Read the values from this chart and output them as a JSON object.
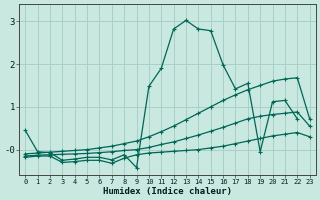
{
  "xlabel": "Humidex (Indice chaleur)",
  "xlim": [
    -0.5,
    23.5
  ],
  "ylim": [
    -0.6,
    3.4
  ],
  "bg_color": "#c8e8e0",
  "grid_color": "#a8d0c8",
  "line_color": "#006655",
  "lines": [
    {
      "x": [
        0,
        1,
        2,
        3,
        4,
        5,
        6,
        7,
        8,
        9,
        10,
        11,
        12,
        13,
        14,
        15,
        16,
        17,
        18,
        19,
        20,
        21,
        22
      ],
      "y": [
        0.45,
        -0.05,
        -0.07,
        -0.25,
        -0.22,
        -0.18,
        -0.18,
        -0.24,
        -0.12,
        -0.42,
        1.48,
        1.9,
        2.82,
        3.02,
        2.82,
        2.78,
        1.98,
        1.42,
        1.55,
        -0.05,
        1.12,
        1.15,
        0.72
      ]
    },
    {
      "x": [
        0,
        1,
        2,
        3,
        4,
        5,
        6,
        7,
        8,
        9,
        10,
        11,
        12,
        13,
        14,
        15,
        16,
        17,
        18,
        19,
        20,
        21,
        22,
        23
      ],
      "y": [
        -0.1,
        -0.08,
        -0.06,
        -0.04,
        -0.02,
        0.0,
        0.04,
        0.08,
        0.14,
        0.2,
        0.3,
        0.42,
        0.55,
        0.7,
        0.85,
        1.0,
        1.15,
        1.28,
        1.4,
        1.5,
        1.6,
        1.65,
        1.68,
        0.72
      ]
    },
    {
      "x": [
        0,
        1,
        2,
        3,
        4,
        5,
        6,
        7,
        8,
        9,
        10,
        11,
        12,
        13,
        14,
        15,
        16,
        17,
        18,
        19,
        20,
        21,
        22,
        23
      ],
      "y": [
        -0.15,
        -0.13,
        -0.12,
        -0.11,
        -0.1,
        -0.09,
        -0.07,
        -0.05,
        -0.02,
        0.0,
        0.05,
        0.12,
        0.18,
        0.26,
        0.34,
        0.43,
        0.52,
        0.62,
        0.72,
        0.78,
        0.82,
        0.85,
        0.88,
        0.55
      ]
    },
    {
      "x": [
        0,
        1,
        2,
        3,
        4,
        5,
        6,
        7,
        8,
        9,
        10,
        11,
        12,
        13,
        14,
        15,
        16,
        17,
        18,
        19,
        20,
        21,
        22,
        23
      ],
      "y": [
        -0.18,
        -0.15,
        -0.15,
        -0.3,
        -0.28,
        -0.25,
        -0.25,
        -0.32,
        -0.2,
        -0.12,
        -0.08,
        -0.06,
        -0.04,
        -0.02,
        0.0,
        0.04,
        0.08,
        0.14,
        0.2,
        0.26,
        0.32,
        0.36,
        0.4,
        0.3
      ]
    }
  ]
}
